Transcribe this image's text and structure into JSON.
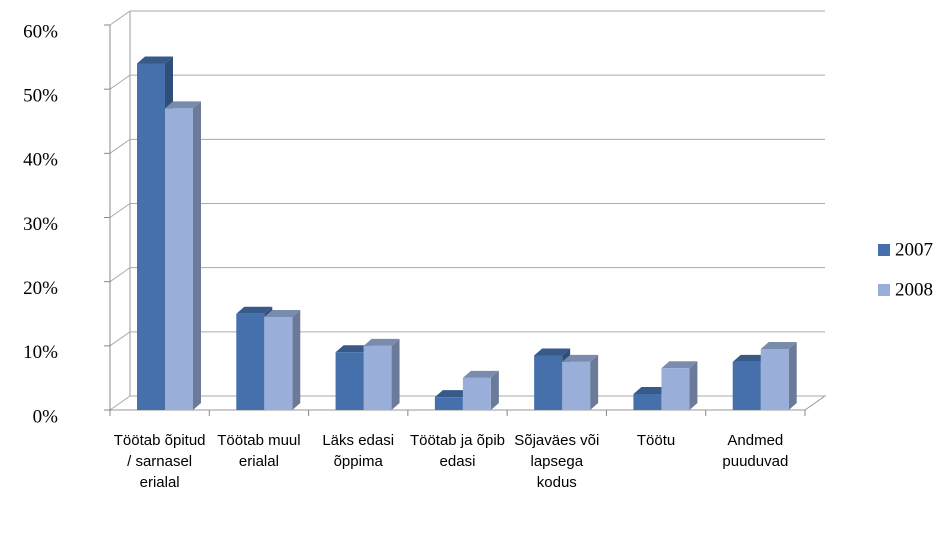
{
  "chart_data": {
    "type": "bar3d",
    "categories": [
      "Töötab õpitud / sarnasel erialal",
      "Töötab muul erialal",
      "Läks edasi õppima",
      "Töötab ja õpib edasi",
      "Sõjaväes või lapsega kodus",
      "Töötu",
      "Andmed puuduvad"
    ],
    "series": [
      {
        "name": "2007",
        "color": "#4570ab",
        "values": [
          54,
          15,
          9,
          2,
          8.5,
          2.5,
          7.5
        ]
      },
      {
        "name": "2008",
        "color": "#99afd9",
        "values": [
          47,
          14.5,
          10,
          5,
          7.5,
          6.5,
          9.5
        ]
      }
    ],
    "ylim": [
      0,
      60
    ],
    "yticks": [
      {
        "value": 0,
        "label": "0%"
      },
      {
        "value": 10,
        "label": "10%"
      },
      {
        "value": 20,
        "label": "20%"
      },
      {
        "value": 30,
        "label": "30%"
      },
      {
        "value": 40,
        "label": "40%"
      },
      {
        "value": 50,
        "label": "50%"
      },
      {
        "value": 60,
        "label": "60%"
      }
    ],
    "grid": true,
    "legend": "right"
  }
}
